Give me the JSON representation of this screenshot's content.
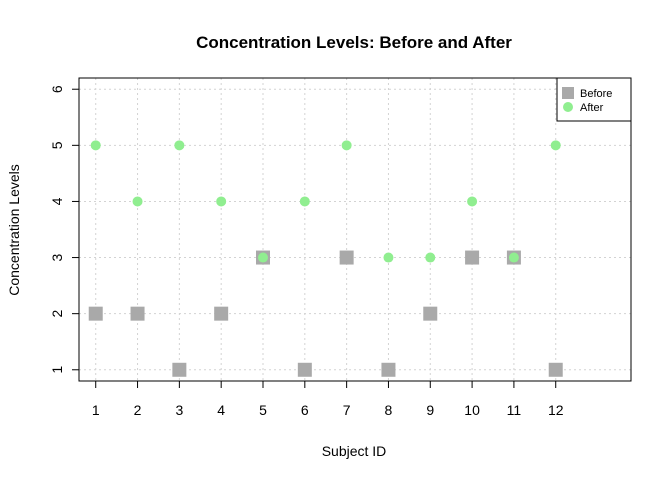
{
  "chart_data": {
    "type": "scatter",
    "title": "Concentration Levels: Before and After",
    "xlabel": "Subject ID",
    "ylabel": "Concentration Levels",
    "x": [
      1,
      2,
      3,
      4,
      5,
      6,
      7,
      8,
      9,
      10,
      11,
      12
    ],
    "x_tick_labels": [
      "1",
      "2",
      "3",
      "4",
      "5",
      "6",
      "7",
      "8",
      "9",
      "10",
      "11",
      "12"
    ],
    "y_tick_labels": [
      "1",
      "2",
      "3",
      "4",
      "5",
      "6"
    ],
    "xlim": [
      0.6,
      13.8
    ],
    "ylim": [
      0.8,
      6.2
    ],
    "grid": true,
    "legend_position": "top-right",
    "series": [
      {
        "name": "Before",
        "marker": "square",
        "color": "#a9a9a9",
        "values": [
          2,
          2,
          1,
          2,
          3,
          1,
          3,
          1,
          2,
          3,
          3,
          1
        ]
      },
      {
        "name": "After",
        "marker": "circle",
        "color": "#90ee90",
        "values": [
          5,
          4,
          5,
          4,
          3,
          4,
          5,
          3,
          3,
          4,
          3,
          5
        ]
      }
    ]
  }
}
